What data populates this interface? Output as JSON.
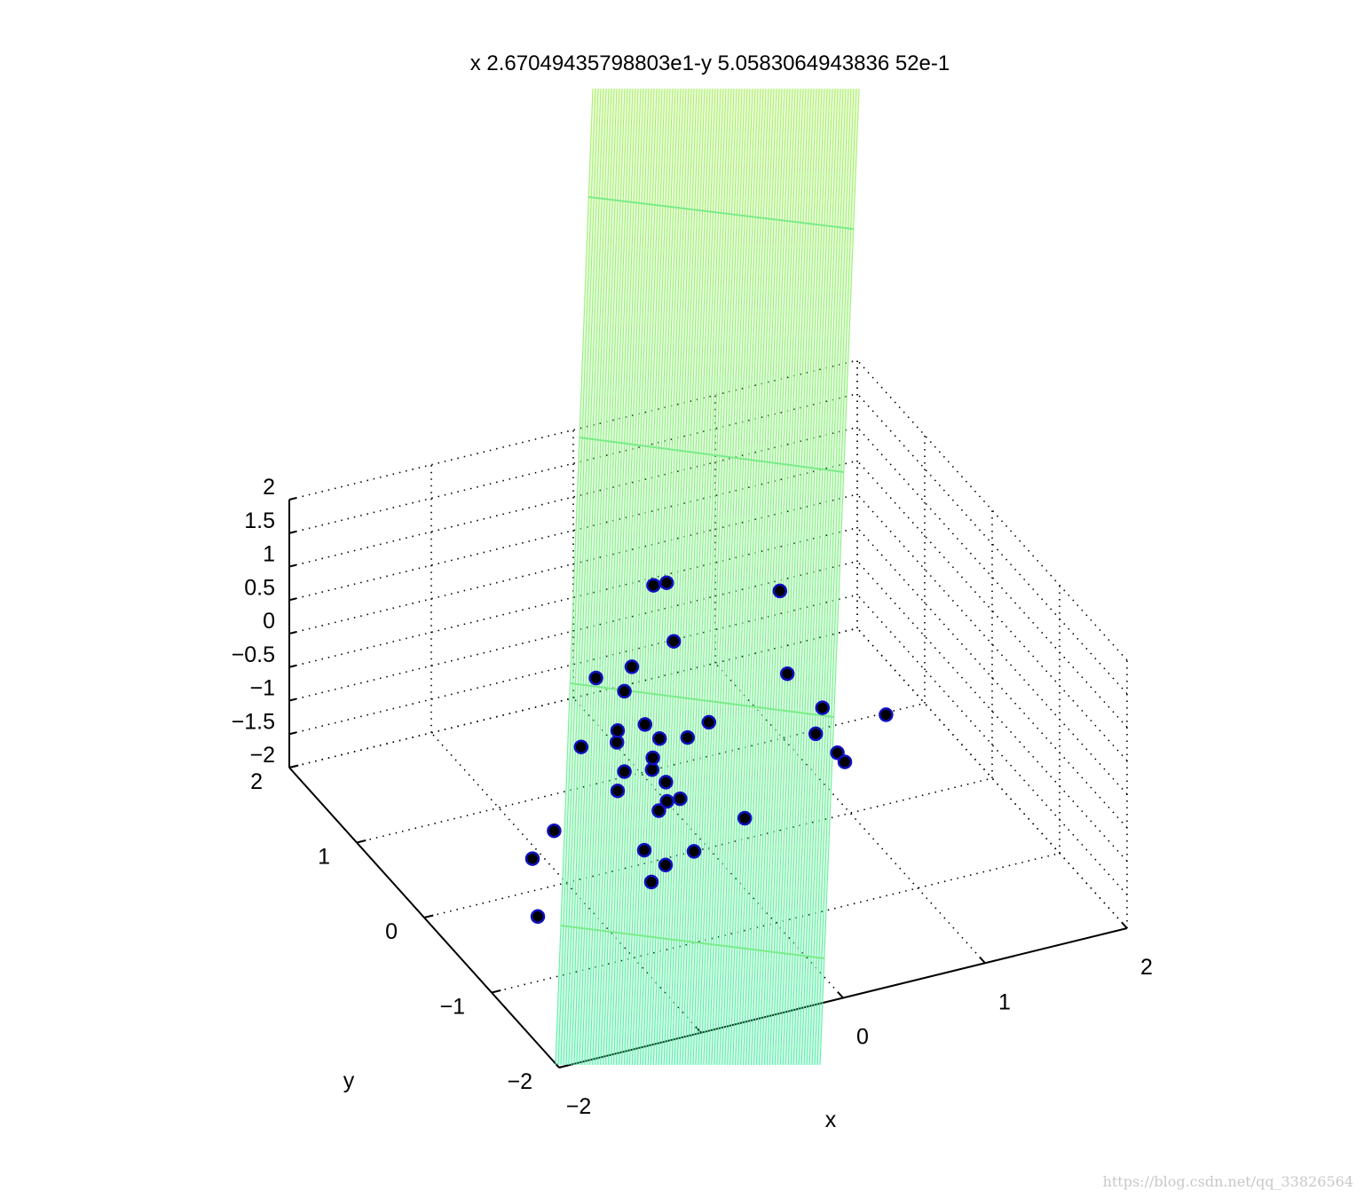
{
  "chart_data": {
    "type": "scatter",
    "title": "x 2.67049435798803e1-y 5.0583064943836 52e-1",
    "xlabel": "x",
    "ylabel": "y",
    "zlabel": "",
    "xlim": [
      -2,
      2
    ],
    "ylim": [
      -2,
      2
    ],
    "zlim": [
      -2,
      2
    ],
    "x_ticks": [
      "−2",
      "0",
      "1",
      "2"
    ],
    "y_ticks": [
      "−2",
      "−1",
      "0",
      "1",
      "2"
    ],
    "z_ticks": [
      "−2",
      "−1.5",
      "−1",
      "−0.5",
      "0",
      "0.5",
      "1",
      "1.5",
      "2"
    ],
    "grid": true,
    "surface": {
      "name": "fitted plane",
      "color_low": "#50f0a8",
      "color_high": "#a8f060"
    },
    "points_color_fill": "#000000",
    "points_color_edge": "#1010c0",
    "points": [
      [
        -0.15,
        0.3,
        1.7
      ],
      [
        -0.1,
        0.6,
        1.3
      ],
      [
        -0.1,
        0.3,
        0.8
      ],
      [
        0.6,
        0.2,
        1.3
      ],
      [
        -0.6,
        0.4,
        0.4
      ],
      [
        -0.3,
        0.5,
        0.3
      ],
      [
        -0.4,
        0.4,
        0.1
      ],
      [
        -0.35,
        0.2,
        -0.2
      ],
      [
        -0.5,
        0.3,
        -0.5
      ],
      [
        -0.4,
        0.5,
        -0.6
      ],
      [
        -0.2,
        0.3,
        -0.6
      ],
      [
        -0.05,
        0.2,
        -0.55
      ],
      [
        -0.3,
        0.2,
        -0.9
      ],
      [
        -0.2,
        0.4,
        -1.0
      ],
      [
        -0.4,
        0.4,
        -1.1
      ],
      [
        -0.15,
        0.1,
        -1.3
      ],
      [
        -0.3,
        0.1,
        -1.4
      ],
      [
        -0.4,
        0.5,
        -1.5
      ],
      [
        0.9,
        0.2,
        -0.6
      ],
      [
        1.3,
        0.1,
        -0.8
      ],
      [
        0.9,
        0.3,
        -1.1
      ],
      [
        1.1,
        0.4,
        -1.6
      ],
      [
        -0.45,
        0.0,
        -1.8
      ],
      [
        -0.1,
        0.0,
        -2.0
      ],
      [
        -0.8,
        0.6,
        -2.0
      ],
      [
        -1.0,
        0.5,
        -2.2
      ],
      [
        -0.3,
        0.0,
        -2.1
      ],
      [
        0.4,
        0.3,
        -2.1
      ],
      [
        1.2,
        0.5,
        -1.9
      ],
      [
        -1.2,
        0.0,
        -2.4
      ],
      [
        -0.4,
        0.0,
        -2.3
      ],
      [
        -0.1,
        0.4,
        -1.7
      ],
      [
        -0.8,
        0.2,
        -0.3
      ],
      [
        -0.25,
        0.1,
        -1.0
      ],
      [
        0.1,
        0.2,
        -0.4
      ],
      [
        0.7,
        0.3,
        -0.1
      ]
    ],
    "watermark": "https://blog.csdn.net/qq_33826564"
  }
}
